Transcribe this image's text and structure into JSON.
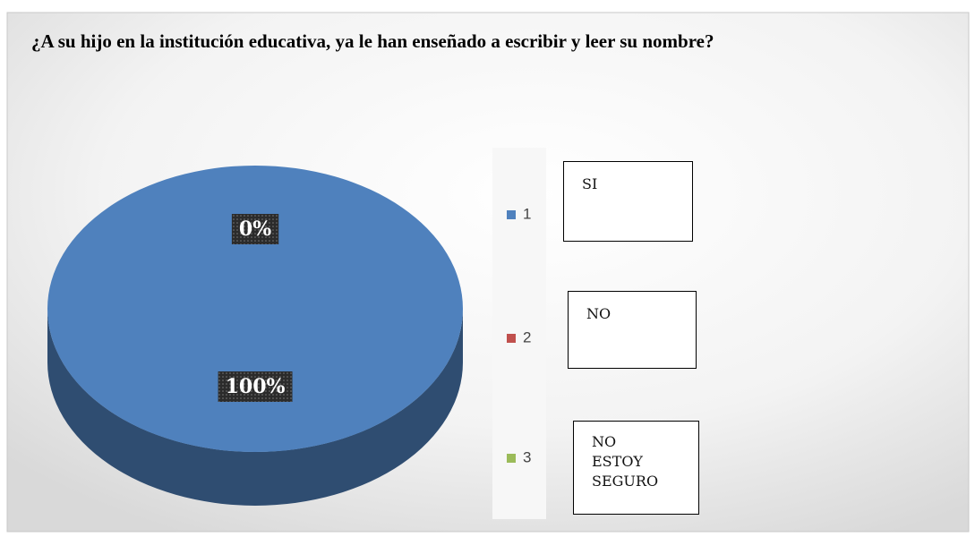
{
  "chart_data": {
    "type": "pie",
    "title": "¿A su hijo en la institución educativa, ya le han enseñado a escribir y leer su nombre?",
    "categories": [
      "1",
      "2",
      "3"
    ],
    "values": [
      100,
      0,
      0
    ],
    "value_labels": [
      "100%",
      "0%",
      null
    ],
    "series_colors": [
      "#4f81bd",
      "#c0504d",
      "#9bbb59"
    ],
    "annotations": [
      "SI",
      "NO",
      "NO ESTOY SEGURO"
    ]
  }
}
